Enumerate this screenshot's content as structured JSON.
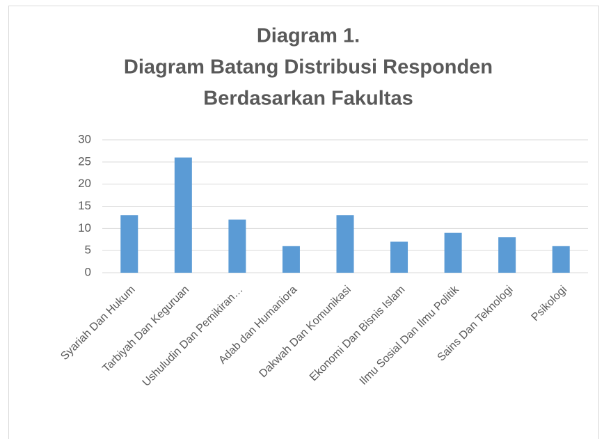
{
  "chart_data": {
    "type": "bar",
    "title": [
      "Diagram 1.",
      "Diagram Batang Distribusi Responden",
      "Berdasarkan Fakultas"
    ],
    "categories": [
      "Syariah Dan Hukum",
      "Tarbiyah Dan Keguruan",
      "Ushuludin Dan Pemikiran…",
      "Adab dan Humaniora",
      "Dakwah Dan Komunikasi",
      "Ekonomi Dan Bisnis Islam",
      "Ilmu Sosial Dan Ilmu Politik",
      "Sains Dan Teknologi",
      "Psikologi"
    ],
    "values": [
      13,
      26,
      12,
      6,
      13,
      7,
      9,
      8,
      6
    ],
    "color": "#5b9bd5",
    "ylim": [
      0,
      30
    ],
    "yticks": [
      0,
      5,
      10,
      15,
      20,
      25,
      30
    ],
    "grid": true
  }
}
